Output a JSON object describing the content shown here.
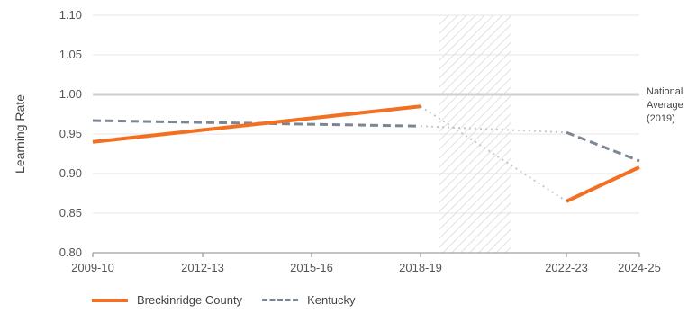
{
  "chart_data": {
    "type": "line",
    "title": "",
    "xlabel": "",
    "ylabel": "Learning Rate",
    "ylim": [
      0.8,
      1.1
    ],
    "yticks": [
      "0.80",
      "0.85",
      "0.90",
      "0.95",
      "1.00",
      "1.05",
      "1.10"
    ],
    "xticks": [
      "2009-10",
      "2012-13",
      "2015-16",
      "2018-19",
      "2022-23",
      "2024-25"
    ],
    "shaded_period": [
      "2019-20",
      "2021-22"
    ],
    "reference_line": {
      "value": 1.0,
      "label": [
        "National",
        "Average",
        "(2019)"
      ]
    },
    "legend_placement": "bottom-left",
    "series": [
      {
        "name": "Breckinridge County",
        "color": "#f36f21",
        "style": "solid",
        "segments": [
          {
            "x": [
              "2009-10",
              "2018-19"
            ],
            "y": [
              0.94,
              0.985
            ]
          },
          {
            "x": [
              "2022-23",
              "2024-25"
            ],
            "y": [
              0.865,
              0.908
            ]
          }
        ],
        "bridge": {
          "x": [
            "2018-19",
            "2022-23"
          ],
          "y": [
            0.985,
            0.865
          ]
        }
      },
      {
        "name": "Kentucky",
        "color": "#7c8693",
        "style": "dashed",
        "segments": [
          {
            "x": [
              "2009-10",
              "2018-19"
            ],
            "y": [
              0.967,
              0.96
            ]
          },
          {
            "x": [
              "2022-23",
              "2024-25"
            ],
            "y": [
              0.952,
              0.916
            ]
          }
        ],
        "bridge": {
          "x": [
            "2018-19",
            "2022-23"
          ],
          "y": [
            0.96,
            0.952
          ]
        }
      }
    ]
  }
}
